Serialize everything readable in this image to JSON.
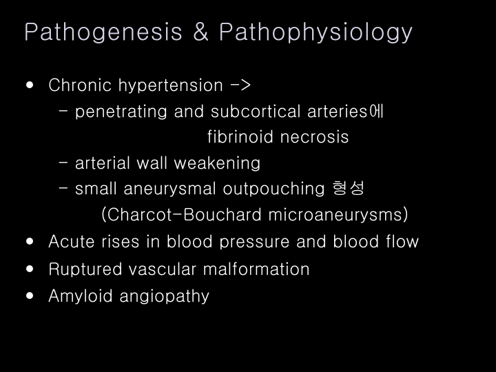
{
  "slide": {
    "title": "Pathogenesis & Pathophysiology",
    "title_color": "#d8d4e6",
    "title_fontsize": 35,
    "background_color": "#000000",
    "text_color": "#ffffff",
    "body_fontsize": 25,
    "bullet_color": "#ffffff",
    "items": [
      {
        "line1": "Chronic hypertension ->",
        "sub_a": "- penetrating and subcortical arteries에",
        "sub_a_indent": "fibrinoid necrosis",
        "sub_b": "- arterial wall weakening",
        "sub_c": "- small aneurysmal outpouching 형성",
        "sub_c_paren": "(Charcot-Bouchard microaneurysms)"
      },
      {
        "line1": "Acute rises in blood pressure and blood flow"
      },
      {
        "line1": "Ruptured vascular malformation"
      },
      {
        "line1": "Amyloid angiopathy"
      }
    ]
  }
}
